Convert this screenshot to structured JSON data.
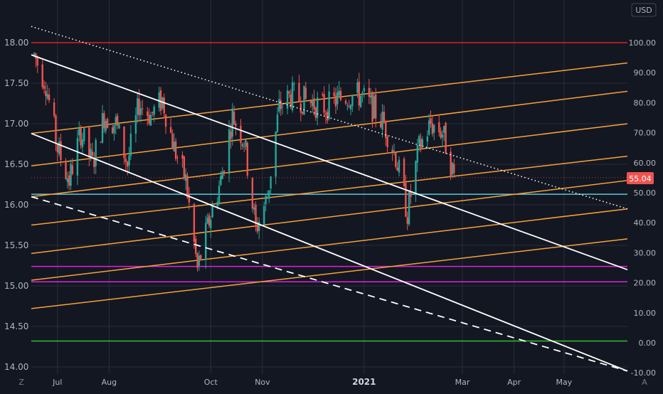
{
  "currency_badge": "USD",
  "price_badge": "55.04",
  "corner_left": "Z",
  "corner_right": "A",
  "colors": {
    "background": "#131722",
    "grid": "#2a2e39",
    "up": "#26a69a",
    "down": "#ef5350",
    "red_line": "#e0201c",
    "orange_lines": "#f7a13b",
    "cyan_line": "#5ec8d8",
    "magenta_lines": "#e020e0",
    "green_line": "#2fc02f",
    "trend_lines": "#ffffff"
  },
  "chart_data": {
    "type": "candlestick",
    "x_labels": [
      "Jul",
      "Aug",
      "Oct",
      "Nov",
      "2021",
      "Mar",
      "Apr",
      "May"
    ],
    "y_left_ticks": [
      "18.00",
      "17.50",
      "17.00",
      "16.50",
      "16.00",
      "15.50",
      "15.00",
      "14.50",
      "14.00"
    ],
    "y_left_range": [
      13.95,
      18.15
    ],
    "y_right_ticks": [
      "100.00",
      "90.00",
      "80.00",
      "70.00",
      "60.00",
      "50.00",
      "40.00",
      "30.00",
      "20.00",
      "10.00",
      "0.00",
      "-10.00"
    ],
    "last_value_right": 55.04,
    "horizontal_levels": [
      {
        "value": 18.0,
        "color": "red"
      },
      {
        "value": 16.13,
        "color": "cyan"
      },
      {
        "value": 15.24,
        "color": "magenta"
      },
      {
        "value": 15.05,
        "color": "magenta"
      },
      {
        "value": 14.32,
        "color": "green"
      }
    ],
    "price_path": [
      [
        "2020-06-17",
        17.85
      ],
      [
        "2020-06-24",
        17.5
      ],
      [
        "2020-07-01",
        16.7
      ],
      [
        "2020-07-08",
        16.3
      ],
      [
        "2020-07-15",
        16.9
      ],
      [
        "2020-07-22",
        16.5
      ],
      [
        "2020-07-29",
        17.1
      ],
      [
        "2020-08-05",
        17.0
      ],
      [
        "2020-08-12",
        16.5
      ],
      [
        "2020-08-19",
        17.25
      ],
      [
        "2020-08-26",
        17.1
      ],
      [
        "2020-09-02",
        17.3
      ],
      [
        "2020-09-09",
        16.7
      ],
      [
        "2020-09-16",
        16.3
      ],
      [
        "2020-09-23",
        15.2
      ],
      [
        "2020-09-30",
        15.8
      ],
      [
        "2020-10-07",
        16.3
      ],
      [
        "2020-10-14",
        17.1
      ],
      [
        "2020-10-21",
        16.8
      ],
      [
        "2020-10-28",
        15.7
      ],
      [
        "2020-11-04",
        16.1
      ],
      [
        "2020-11-11",
        17.2
      ],
      [
        "2020-11-18",
        17.35
      ],
      [
        "2020-11-25",
        17.3
      ],
      [
        "2020-12-02",
        17.25
      ],
      [
        "2020-12-09",
        17.2
      ],
      [
        "2020-12-16",
        17.3
      ],
      [
        "2020-12-23",
        17.35
      ],
      [
        "2020-12-30",
        17.35
      ],
      [
        "2021-01-06",
        17.2
      ],
      [
        "2021-01-13",
        17.0
      ],
      [
        "2021-01-20",
        16.6
      ],
      [
        "2021-01-27",
        15.9
      ],
      [
        "2021-02-03",
        16.7
      ],
      [
        "2021-02-10",
        17.0
      ],
      [
        "2021-02-17",
        16.9
      ],
      [
        "2021-02-24",
        16.35
      ]
    ],
    "orange_channel_lines": [
      {
        "start": 16.88,
        "end": 17.75
      },
      {
        "start": 16.48,
        "end": 17.4
      },
      {
        "start": 16.1,
        "end": 17.0
      },
      {
        "start": 15.75,
        "end": 16.6
      },
      {
        "start": 15.4,
        "end": 16.3
      },
      {
        "start": 15.07,
        "end": 15.95
      },
      {
        "start": 14.72,
        "end": 15.58
      }
    ],
    "descending_trend_lines": [
      {
        "style": "solid",
        "start": 17.85,
        "end": 15.2
      },
      {
        "style": "solid",
        "start": 16.88,
        "end": 13.95
      },
      {
        "style": "dotted",
        "start": 18.2,
        "end": 15.95
      },
      {
        "style": "dashed",
        "start": 16.1,
        "end": 13.95
      }
    ]
  }
}
